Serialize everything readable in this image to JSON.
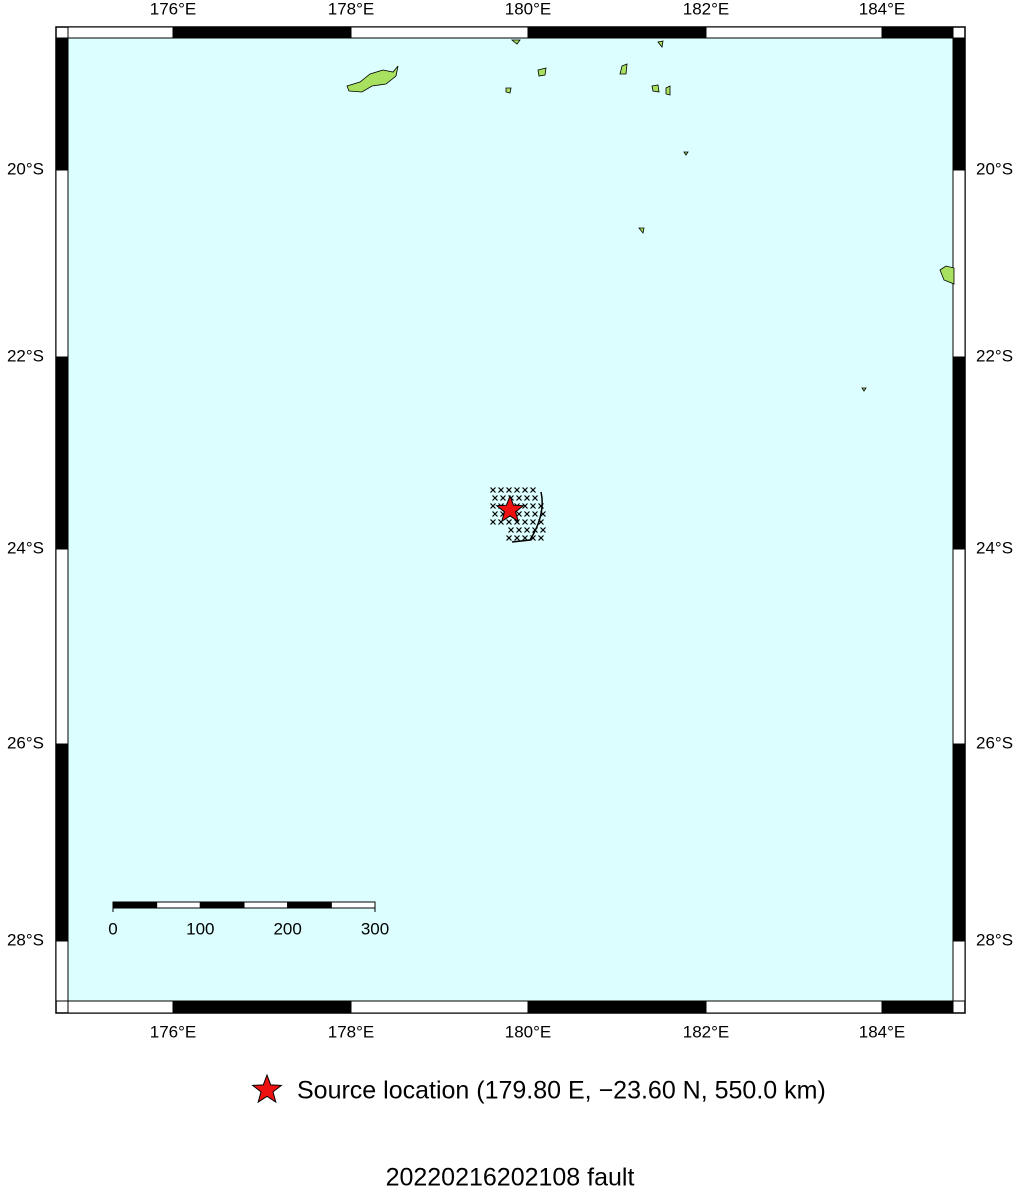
{
  "map": {
    "lon_ticks": [
      "176°E",
      "178°E",
      "180°E",
      "182°E",
      "184°E"
    ],
    "lat_ticks": [
      "20°S",
      "22°S",
      "24°S",
      "26°S",
      "28°S"
    ],
    "scale_bar": {
      "labels": [
        "0",
        "100",
        "200",
        "300"
      ]
    },
    "legend": "Source location (179.80 E, −23.60 N, 550.0 km)",
    "title": "20220216202108 fault"
  }
}
